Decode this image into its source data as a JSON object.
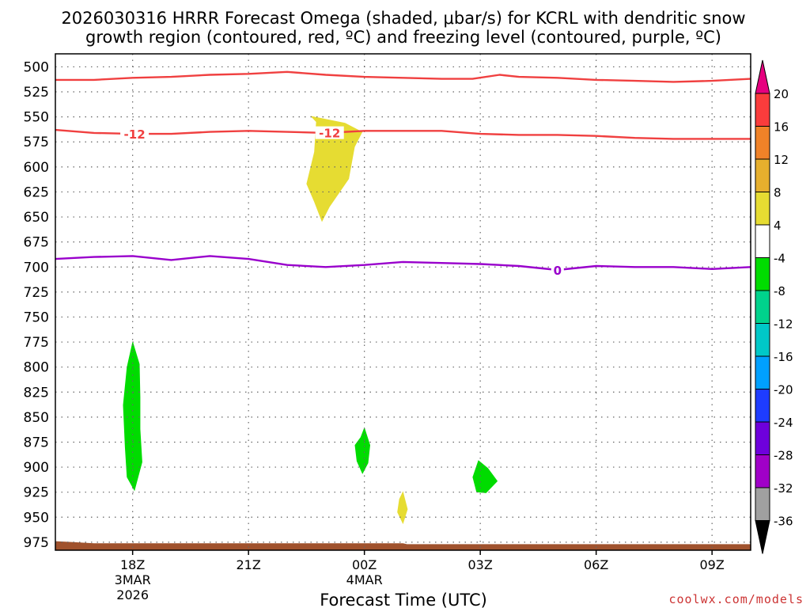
{
  "chart_data": {
    "type": "heatmap",
    "title_line1": "2026030316 HRRR Forecast Omega (shaded, μbar/s) for KCRL with dendritic snow",
    "title_line2": "growth region (contoured, red, ºC) and freezing level (contoured, purple, ºC)",
    "xlabel": "Forecast Time (UTC)",
    "credit": "coolwx.com/models",
    "x_unit": "hours since 2026-03-03 15Z",
    "xlim": [
      1,
      19
    ],
    "ylim": [
      487,
      983
    ],
    "y_axis": "pressure (hPa), inverted",
    "y_ticks": [
      500,
      525,
      550,
      575,
      600,
      625,
      650,
      675,
      700,
      725,
      750,
      775,
      800,
      825,
      850,
      875,
      900,
      925,
      950,
      975
    ],
    "x_ticks": [
      {
        "x": 3,
        "lines": [
          "18Z",
          "3MAR",
          "2026"
        ]
      },
      {
        "x": 6,
        "lines": [
          "21Z"
        ]
      },
      {
        "x": 9,
        "lines": [
          "00Z",
          "4MAR"
        ]
      },
      {
        "x": 12,
        "lines": [
          "03Z"
        ]
      },
      {
        "x": 15,
        "lines": [
          "06Z"
        ]
      },
      {
        "x": 18,
        "lines": [
          "09Z"
        ]
      }
    ],
    "grid": true,
    "colorbar": {
      "colors": [
        "#000000",
        "#a0a0a0",
        "#a000c8",
        "#6e00dc",
        "#1e3cff",
        "#00a0ff",
        "#00c8c8",
        "#00d28c",
        "#00dc00",
        "#ffffff",
        "#e6dc32",
        "#e6af2d",
        "#f08228",
        "#fa3c3c",
        "#e6007f"
      ],
      "levels": [
        -36,
        -32,
        -28,
        -24,
        -20,
        -16,
        -12,
        -8,
        -4,
        4,
        8,
        12,
        16,
        20
      ],
      "labels": [
        "-36",
        "-32",
        "-28",
        "-24",
        "-20",
        "-16",
        "-12",
        "-8",
        "-4",
        "4",
        "8",
        "12",
        "16",
        "20"
      ]
    },
    "series": [
      {
        "name": "dendritic growth top (-18 ºC)",
        "color": "#f04040",
        "points": [
          [
            1,
            513
          ],
          [
            2,
            513
          ],
          [
            3,
            511
          ],
          [
            4,
            510
          ],
          [
            5,
            508
          ],
          [
            6,
            507
          ],
          [
            7,
            505
          ],
          [
            8,
            508
          ],
          [
            9,
            510
          ],
          [
            10,
            511
          ],
          [
            11,
            512
          ],
          [
            11.8,
            512
          ],
          [
            12.5,
            508
          ],
          [
            13,
            510
          ],
          [
            14,
            511
          ],
          [
            15,
            513
          ],
          [
            16,
            514
          ],
          [
            17,
            515
          ],
          [
            18,
            514
          ],
          [
            19,
            512
          ]
        ]
      },
      {
        "name": "dendritic growth bottom (-12 ºC)",
        "color": "#f04040",
        "label": "-12",
        "label_x": [
          3.05,
          8.1
        ],
        "points": [
          [
            1,
            563
          ],
          [
            2,
            566
          ],
          [
            3,
            567
          ],
          [
            4,
            567
          ],
          [
            5,
            565
          ],
          [
            6,
            564
          ],
          [
            7,
            565
          ],
          [
            8,
            566
          ],
          [
            9,
            564
          ],
          [
            10,
            564
          ],
          [
            11,
            564
          ],
          [
            12,
            567
          ],
          [
            13,
            568
          ],
          [
            14,
            568
          ],
          [
            15,
            569
          ],
          [
            16,
            571
          ],
          [
            17,
            572
          ],
          [
            18,
            572
          ],
          [
            19,
            572
          ]
        ]
      },
      {
        "name": "freezing level (0 ºC)",
        "color": "#9900cc",
        "label": "0",
        "label_x": [
          14
        ],
        "points": [
          [
            1,
            692
          ],
          [
            2,
            690
          ],
          [
            3,
            689
          ],
          [
            4,
            693
          ],
          [
            5,
            689
          ],
          [
            6,
            692
          ],
          [
            7,
            698
          ],
          [
            8,
            700
          ],
          [
            9,
            698
          ],
          [
            10,
            695
          ],
          [
            11,
            696
          ],
          [
            12,
            697
          ],
          [
            13,
            699
          ],
          [
            14,
            703
          ],
          [
            15,
            699
          ],
          [
            16,
            700
          ],
          [
            17,
            700
          ],
          [
            18,
            702
          ],
          [
            19,
            700
          ]
        ]
      }
    ],
    "shaded_regions": [
      {
        "name": "upward motion 4-8",
        "color": "#e6dc32",
        "points": [
          [
            7.6,
            549
          ],
          [
            8.5,
            556
          ],
          [
            8.95,
            565
          ],
          [
            8.75,
            580
          ],
          [
            8.6,
            612
          ],
          [
            8.1,
            640
          ],
          [
            7.9,
            655
          ],
          [
            7.7,
            635
          ],
          [
            7.5,
            617
          ],
          [
            7.7,
            585
          ],
          [
            7.75,
            555
          ]
        ]
      },
      {
        "name": "sinking -4 to -8 (a)",
        "color": "#00dc00",
        "points": [
          [
            3.0,
            774
          ],
          [
            3.18,
            797
          ],
          [
            3.2,
            830
          ],
          [
            3.2,
            862
          ],
          [
            3.25,
            895
          ],
          [
            3.05,
            924
          ],
          [
            2.85,
            910
          ],
          [
            2.8,
            880
          ],
          [
            2.75,
            838
          ],
          [
            2.85,
            800
          ]
        ]
      },
      {
        "name": "sinking -4 to -8 (b)",
        "color": "#00dc00",
        "points": [
          [
            9.0,
            860
          ],
          [
            9.15,
            878
          ],
          [
            9.1,
            896
          ],
          [
            8.95,
            907
          ],
          [
            8.8,
            894
          ],
          [
            8.75,
            878
          ],
          [
            8.9,
            870
          ]
        ]
      },
      {
        "name": "sinking -4 to -8 (c)",
        "color": "#00dc00",
        "points": [
          [
            11.95,
            893
          ],
          [
            12.2,
            901
          ],
          [
            12.45,
            914
          ],
          [
            12.15,
            926
          ],
          [
            11.9,
            925
          ],
          [
            11.8,
            910
          ]
        ]
      },
      {
        "name": "upward motion 4-8 (small)",
        "color": "#e6dc32",
        "points": [
          [
            10.0,
            924
          ],
          [
            10.12,
            942
          ],
          [
            10.0,
            957
          ],
          [
            9.85,
            945
          ],
          [
            9.9,
            932
          ]
        ]
      }
    ],
    "terrain": {
      "color": "#a0522d",
      "surface_hpa": [
        [
          1,
          974
        ],
        [
          1.5,
          975
        ],
        [
          2,
          976
        ],
        [
          10,
          976
        ],
        [
          10.1,
          977
        ],
        [
          19,
          977
        ]
      ]
    }
  }
}
